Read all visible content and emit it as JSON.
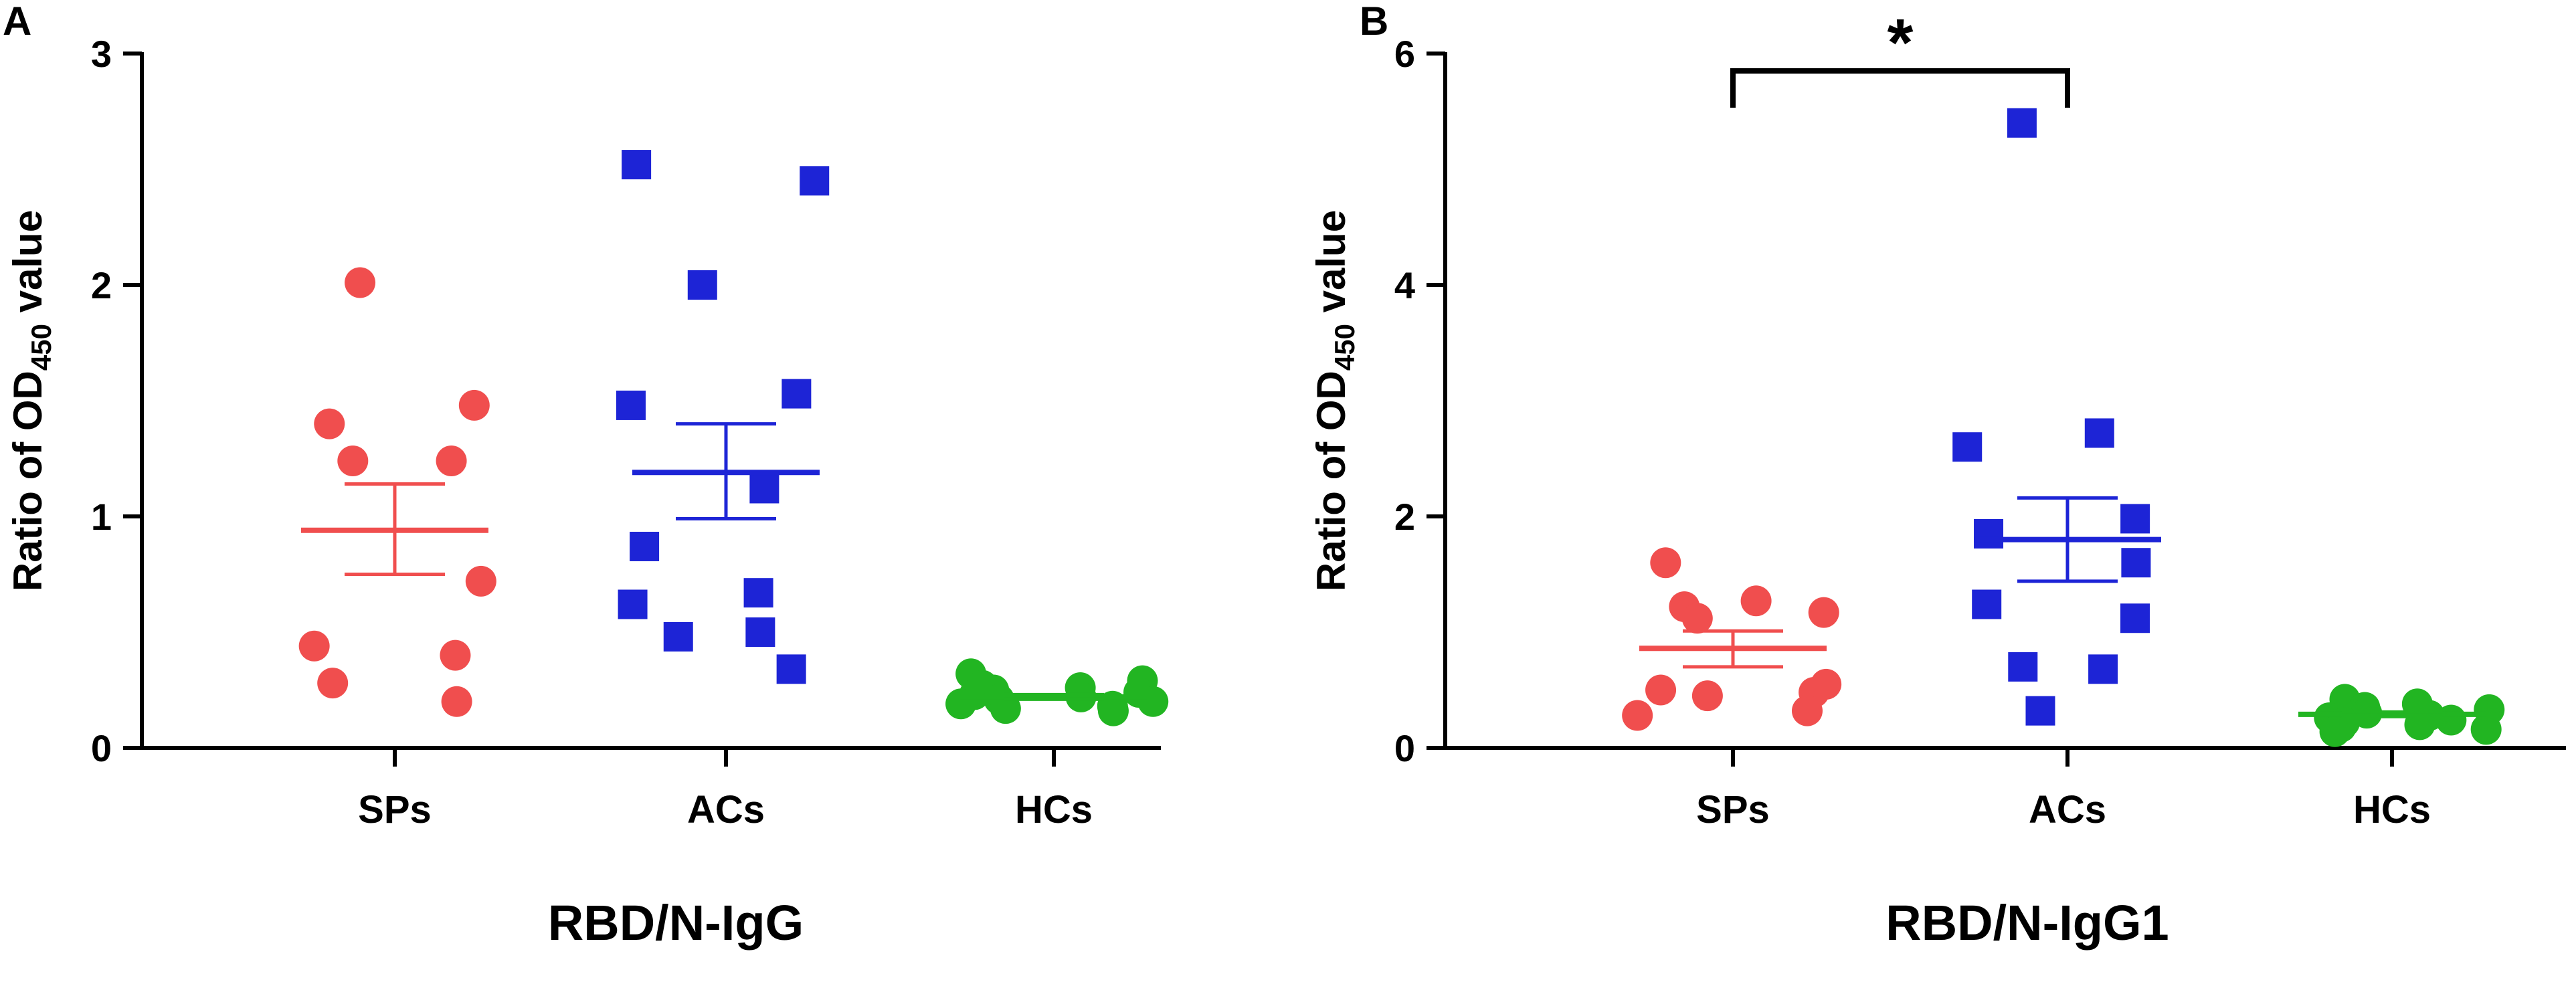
{
  "chart_data": [
    {
      "type": "scatter",
      "panel_label": "A",
      "xlabel": "RBD/N-IgG",
      "ylabel_prefix": "Ratio of OD",
      "ylabel_sub": "450",
      "ylabel_suffix": " value",
      "ylim": [
        0,
        3
      ],
      "yticks": [
        0,
        1,
        2,
        3
      ],
      "categories": [
        "SPs",
        "ACs",
        "HCs"
      ],
      "series": [
        {
          "category": "SPs",
          "marker": "circle",
          "color": "#f04e4e",
          "values": [
            2.01,
            1.48,
            1.4,
            1.24,
            1.24,
            0.72,
            0.44,
            0.4,
            0.28,
            0.2
          ],
          "mean": 0.94,
          "sem_low": 0.75,
          "sem_high": 1.14
        },
        {
          "category": "ACs",
          "marker": "square",
          "color": "#1d24d6",
          "values": [
            2.52,
            2.45,
            2.0,
            1.53,
            1.48,
            1.12,
            0.87,
            0.67,
            0.62,
            0.5,
            0.48,
            0.34
          ],
          "mean": 1.19,
          "sem_low": 0.99,
          "sem_high": 1.4
        },
        {
          "category": "HCs",
          "marker": "circle",
          "color": "#22b522",
          "values": [
            0.32,
            0.29,
            0.27,
            0.26,
            0.25,
            0.24,
            0.23,
            0.22,
            0.21,
            0.2,
            0.19,
            0.18,
            0.17,
            0.16
          ],
          "mean": 0.22,
          "sem_low": 0.21,
          "sem_high": 0.23
        }
      ]
    },
    {
      "type": "scatter",
      "panel_label": "B",
      "xlabel": "RBD/N-IgG1",
      "ylabel_prefix": "Ratio of OD",
      "ylabel_sub": "450",
      "ylabel_suffix": " value",
      "ylim": [
        0,
        6
      ],
      "yticks": [
        0,
        2,
        4,
        6
      ],
      "categories": [
        "SPs",
        "ACs",
        "HCs"
      ],
      "significance": {
        "from": "SPs",
        "to": "ACs",
        "label": "*",
        "y": 5.85
      },
      "series": [
        {
          "category": "SPs",
          "marker": "circle",
          "color": "#f04e4e",
          "values": [
            1.6,
            1.27,
            1.22,
            1.17,
            1.12,
            0.55,
            0.5,
            0.48,
            0.45,
            0.32,
            0.28
          ],
          "mean": 0.86,
          "sem_low": 0.7,
          "sem_high": 1.01
        },
        {
          "category": "ACs",
          "marker": "square",
          "color": "#1d24d6",
          "values": [
            5.4,
            2.72,
            2.6,
            1.98,
            1.85,
            1.6,
            1.24,
            1.12,
            0.7,
            0.68,
            0.32
          ],
          "mean": 1.8,
          "sem_low": 1.44,
          "sem_high": 2.16
        },
        {
          "category": "HCs",
          "marker": "circle",
          "color": "#22b522",
          "values": [
            0.42,
            0.38,
            0.35,
            0.33,
            0.3,
            0.28,
            0.26,
            0.24,
            0.22,
            0.2,
            0.18,
            0.16,
            0.14
          ],
          "mean": 0.29,
          "sem_low": 0.27,
          "sem_high": 0.31
        }
      ]
    }
  ]
}
